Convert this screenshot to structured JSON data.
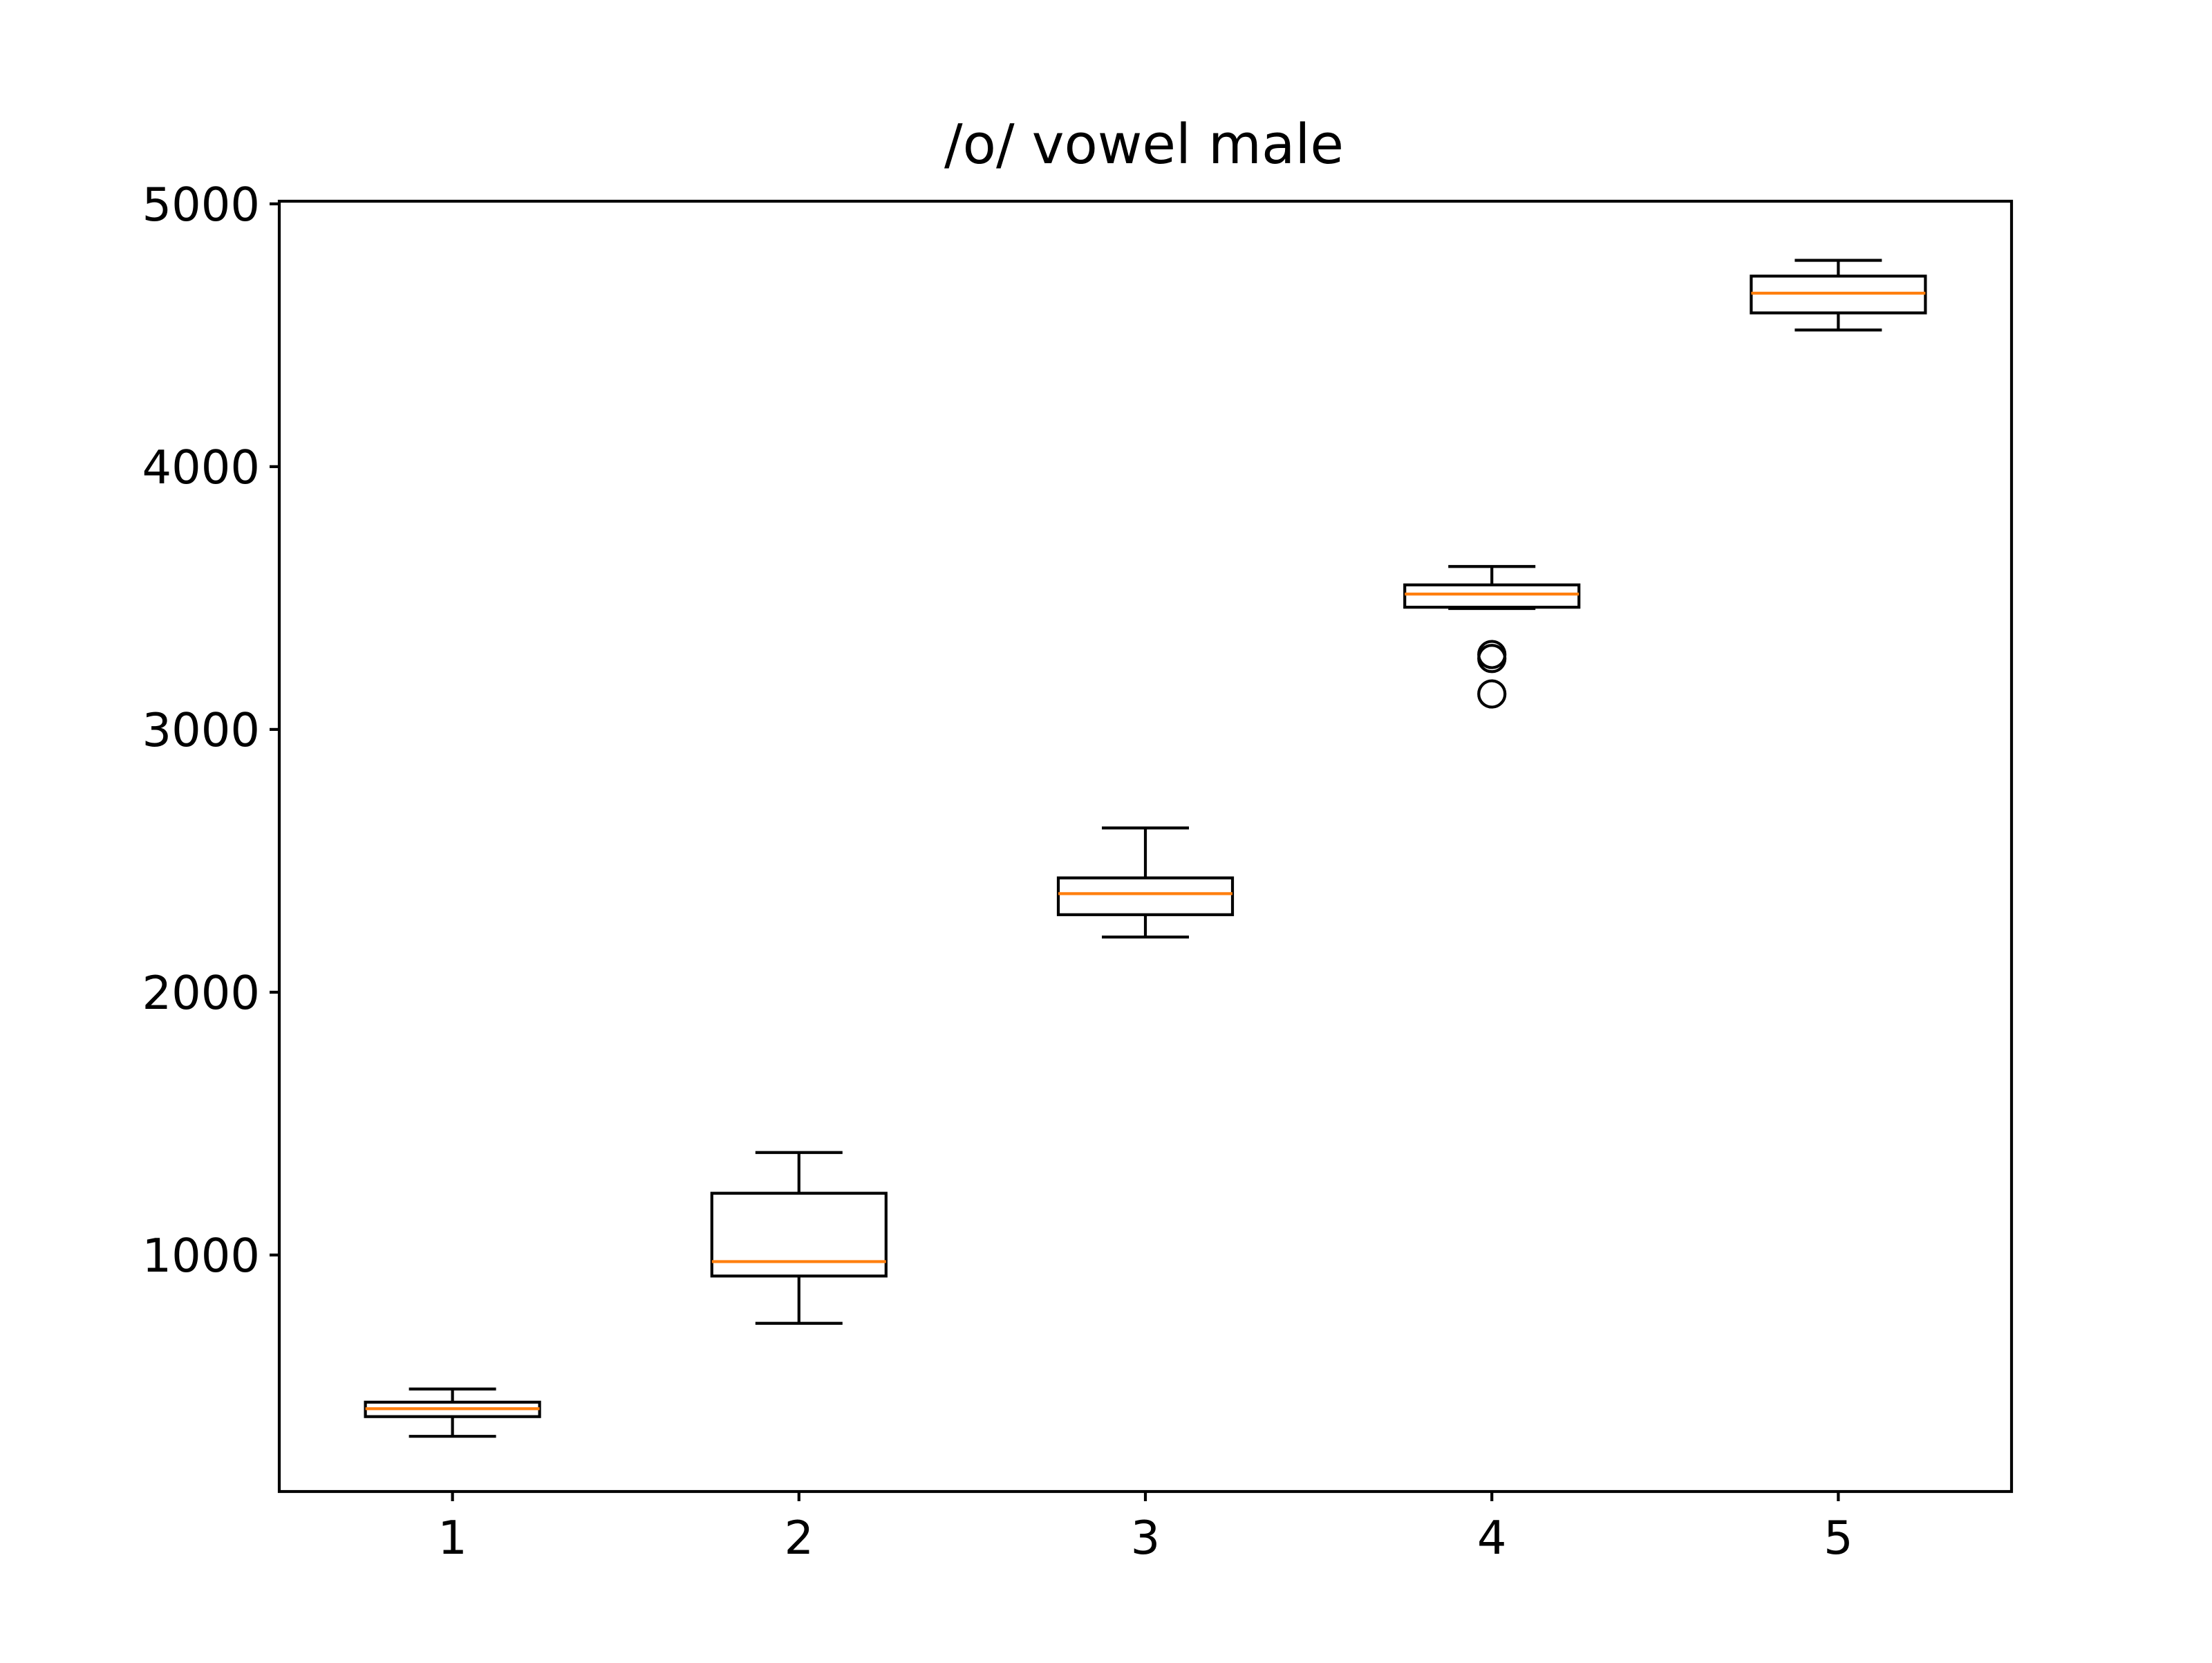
{
  "chart_data": {
    "type": "boxplot",
    "title": "/o/ vowel male",
    "xlabel": "",
    "ylabel": "",
    "categories": [
      "1",
      "2",
      "3",
      "4",
      "5"
    ],
    "ylim": [
      100,
      5010
    ],
    "yticks": [
      1000,
      2000,
      3000,
      4000,
      5000
    ],
    "grid": false,
    "legend": "none",
    "colors": {
      "box": "#000000",
      "median": "#ff7f0e",
      "flier": "#000000"
    },
    "boxes": [
      {
        "label": "1",
        "whislo": 310,
        "q1": 385,
        "med": 415,
        "q3": 440,
        "whishi": 490,
        "fliers": []
      },
      {
        "label": "2",
        "whislo": 740,
        "q1": 920,
        "med": 975,
        "q3": 1235,
        "whishi": 1390,
        "fliers": []
      },
      {
        "label": "3",
        "whislo": 2210,
        "q1": 2295,
        "med": 2375,
        "q3": 2435,
        "whishi": 2625,
        "fliers": []
      },
      {
        "label": "4",
        "whislo": 3460,
        "q1": 3465,
        "med": 3515,
        "q3": 3550,
        "whishi": 3620,
        "fliers": [
          3270,
          3285,
          3135
        ]
      },
      {
        "label": "5",
        "whislo": 4520,
        "q1": 4585,
        "med": 4660,
        "q3": 4725,
        "whishi": 4785,
        "fliers": []
      }
    ]
  }
}
